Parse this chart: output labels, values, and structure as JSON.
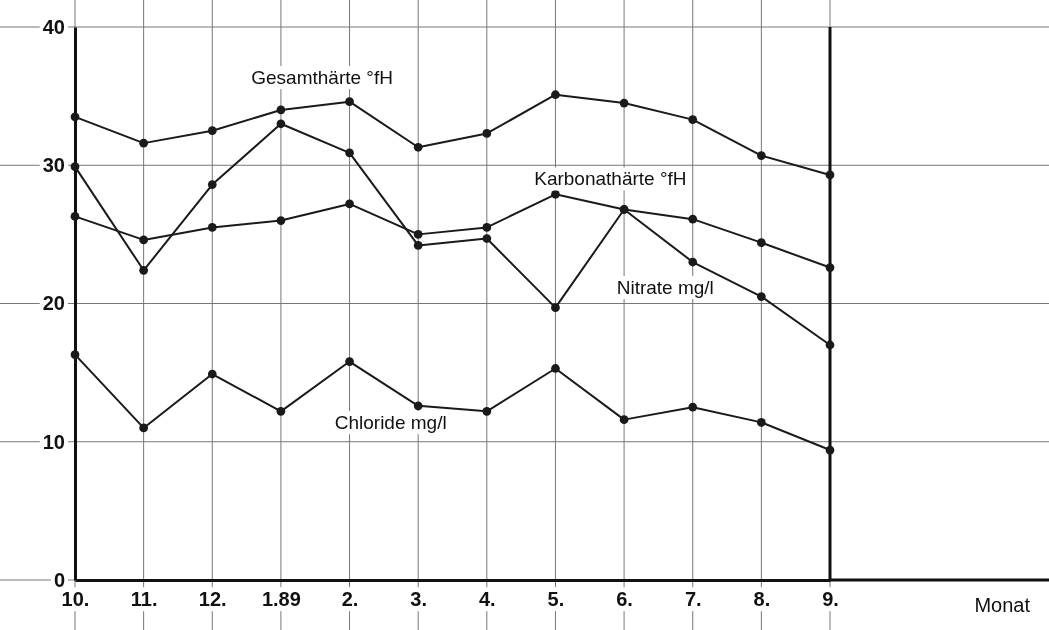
{
  "chart_data": {
    "type": "line",
    "annotations": [
      "Monat"
    ],
    "categories": [
      "10.",
      "11.",
      "12.",
      "1.89",
      "2.",
      "3.",
      "4.",
      "5.",
      "6.",
      "7.",
      "8.",
      "9."
    ],
    "series": [
      {
        "name": "Gesamthärte °fH",
        "color": "#1a1a1a",
        "values": [
          33.5,
          31.6,
          32.5,
          34.0,
          34.6,
          31.3,
          32.3,
          35.1,
          34.5,
          33.3,
          30.7,
          29.3
        ]
      },
      {
        "name": "Karbonathärte °fH",
        "color": "#1a1a1a",
        "values": [
          26.3,
          24.6,
          25.5,
          26.0,
          27.2,
          25.0,
          25.5,
          27.9,
          26.8,
          26.1,
          24.4,
          22.6
        ]
      },
      {
        "name": "Nitrate mg/l",
        "color": "#1a1a1a",
        "values": [
          29.9,
          22.4,
          28.6,
          33.0,
          30.9,
          24.2,
          24.7,
          19.7,
          26.8,
          23.0,
          20.5,
          17.0
        ]
      },
      {
        "name": "Chloride mg/l",
        "color": "#1a1a1a",
        "values": [
          16.3,
          11.0,
          14.9,
          12.2,
          15.8,
          12.6,
          12.2,
          15.3,
          11.6,
          12.5,
          11.4,
          9.4
        ]
      }
    ],
    "ylim": [
      0,
      40
    ],
    "yticks": [
      0,
      10,
      20,
      30,
      40
    ],
    "grid": true,
    "marker": "circle",
    "line_style": "solid"
  }
}
